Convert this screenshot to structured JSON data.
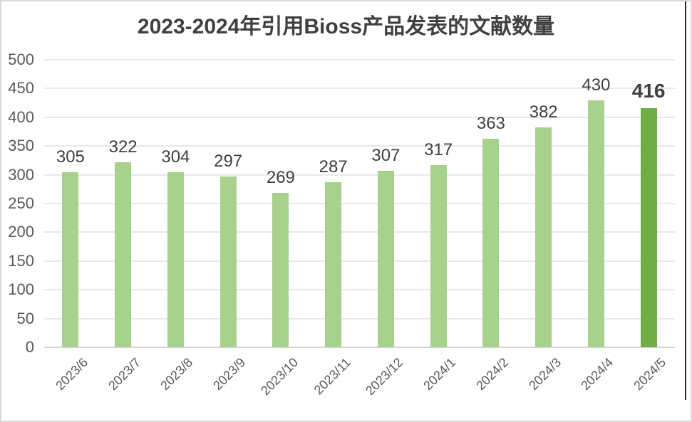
{
  "chart_data": {
    "type": "bar",
    "title": "2023-2024年引用Bioss产品发表的文献数量",
    "categories": [
      "2023/6",
      "2023/7",
      "2023/8",
      "2023/9",
      "2023/10",
      "2023/11",
      "2023/12",
      "2024/1",
      "2024/2",
      "2024/3",
      "2024/4",
      "2024/5"
    ],
    "values": [
      305,
      322,
      304,
      297,
      269,
      287,
      307,
      317,
      363,
      382,
      430,
      416
    ],
    "highlight_index": 11,
    "xlabel": "",
    "ylabel": "",
    "ylim": [
      0,
      500
    ],
    "ytick_step": 50,
    "ytick_labels": [
      "0",
      "50",
      "100",
      "150",
      "200",
      "250",
      "300",
      "350",
      "400",
      "450",
      "500"
    ],
    "grid": true,
    "legend_position": "none",
    "colors": {
      "bar": "#A9D18E",
      "highlight_bar": "#70AD47",
      "title_text": "#404040",
      "value_label": "#404040",
      "axis_label": "#595959",
      "gridline": "#E8E8E8",
      "axis_line": "#D5D5D5",
      "frame_border": "#D9D9D9",
      "right_edge_line": "#2B2B2B"
    }
  }
}
